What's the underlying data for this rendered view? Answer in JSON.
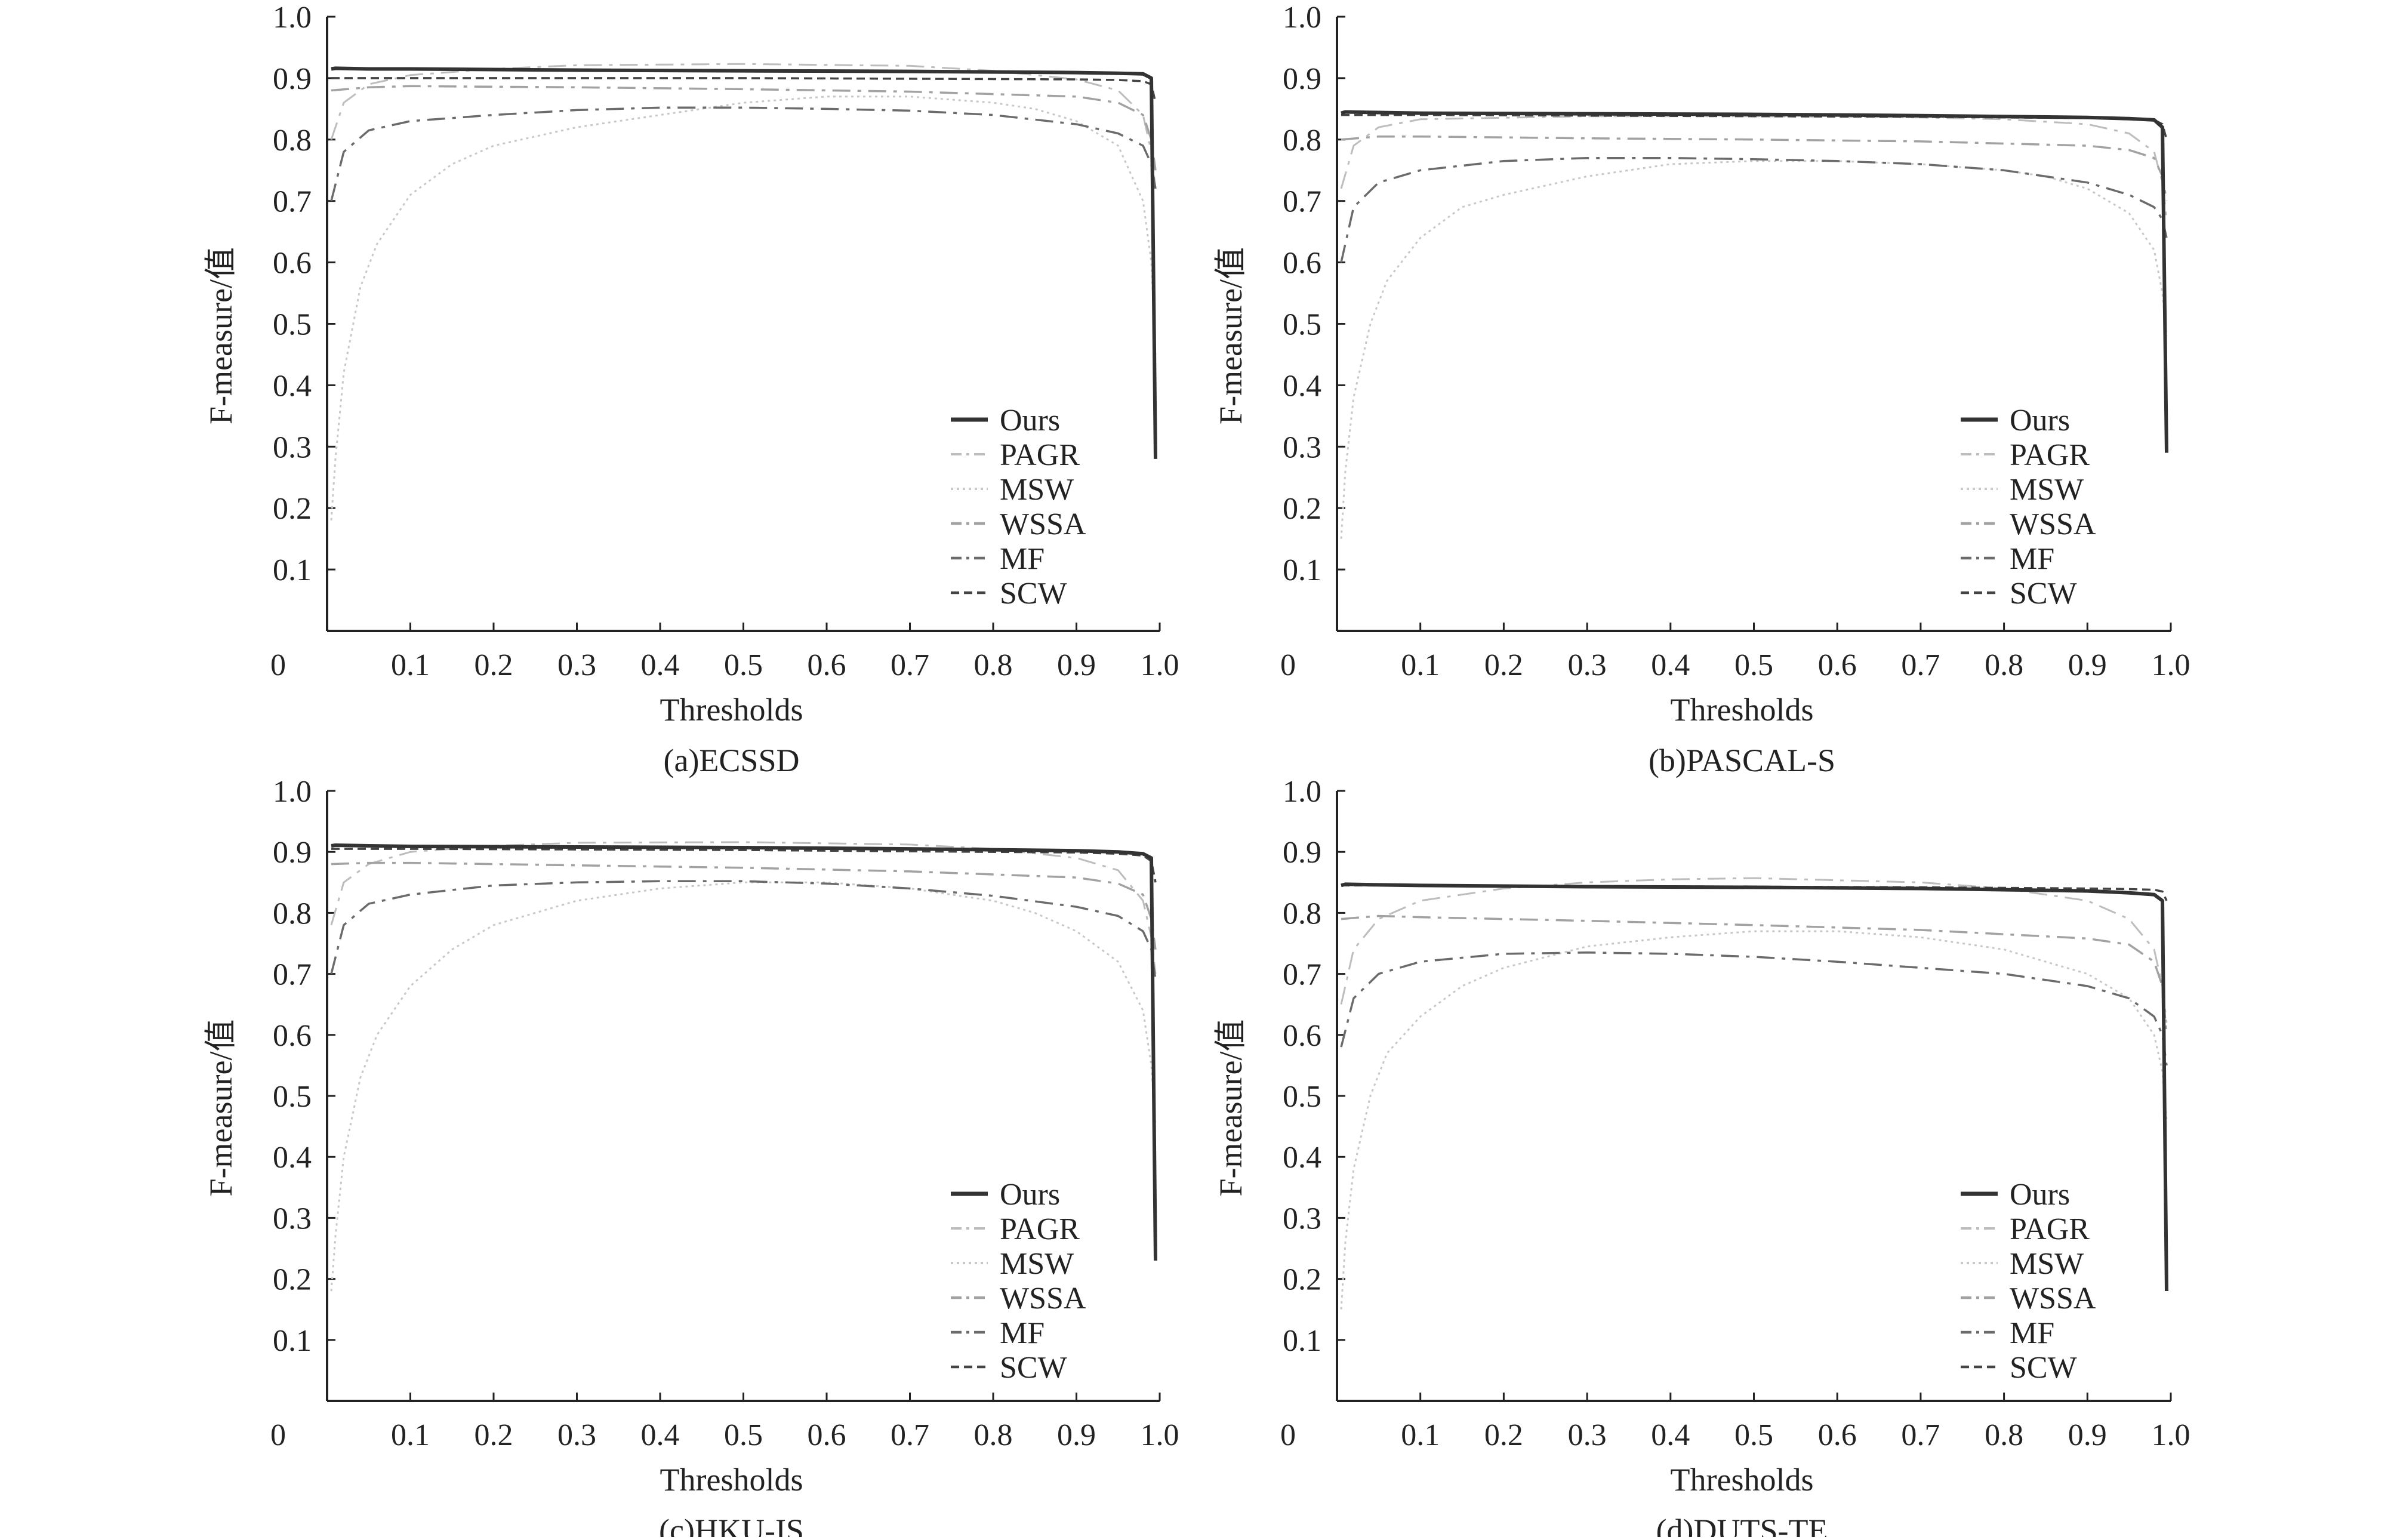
{
  "figure": {
    "ylabel": "F-measure/值",
    "xlabel": "Thresholds"
  },
  "legend_labels": [
    "Ours",
    "PAGR",
    "MSW",
    "WSSA",
    "MF",
    "SCW"
  ],
  "series_styles": {
    "Ours": {
      "color": "#333333",
      "dash": "none",
      "width": 6
    },
    "PAGR": {
      "color": "#bdbdbd",
      "dash": "30,12,6,12",
      "width": 3
    },
    "MSW": {
      "color": "#c8c8c8",
      "dash": "4,6",
      "width": 3
    },
    "WSSA": {
      "color": "#a2a2a2",
      "dash": "30,12,6,12",
      "width": 3.5
    },
    "MF": {
      "color": "#6b6b6b",
      "dash": "30,12,6,12",
      "width": 3.5
    },
    "SCW": {
      "color": "#444444",
      "dash": "14,8",
      "width": 3.5
    }
  },
  "chart_data": [
    {
      "type": "line",
      "caption": "(a)ECSSD",
      "xlabel": "Thresholds",
      "ylabel": "F-measure/值",
      "xlim": [
        0,
        1.0
      ],
      "ylim": [
        0,
        1.0
      ],
      "x_ticks": [
        "0.1",
        "0.2",
        "0.3",
        "0.4",
        "0.5",
        "0.6",
        "0.7",
        "0.8",
        "0.9",
        "1.0"
      ],
      "y_ticks": [
        "0.1",
        "0.2",
        "0.3",
        "0.4",
        "0.5",
        "0.6",
        "0.7",
        "0.8",
        "0.9",
        "1.0"
      ],
      "origin_label": "0",
      "legend": "right",
      "series": [
        {
          "name": "Ours",
          "x": [
            0.005,
            0.01,
            0.05,
            0.1,
            0.3,
            0.5,
            0.7,
            0.9,
            0.95,
            0.98,
            0.99,
            0.995
          ],
          "y": [
            0.915,
            0.916,
            0.915,
            0.915,
            0.913,
            0.912,
            0.911,
            0.909,
            0.908,
            0.907,
            0.9,
            0.28
          ]
        },
        {
          "name": "PAGR",
          "x": [
            0.005,
            0.02,
            0.05,
            0.1,
            0.2,
            0.3,
            0.5,
            0.7,
            0.8,
            0.9,
            0.95,
            0.98,
            0.99,
            0.995
          ],
          "y": [
            0.8,
            0.86,
            0.89,
            0.905,
            0.915,
            0.921,
            0.923,
            0.92,
            0.912,
            0.898,
            0.88,
            0.84,
            0.78,
            0.72
          ]
        },
        {
          "name": "MSW",
          "x": [
            0.005,
            0.01,
            0.02,
            0.04,
            0.06,
            0.1,
            0.15,
            0.2,
            0.3,
            0.4,
            0.5,
            0.6,
            0.7,
            0.8,
            0.85,
            0.9,
            0.95,
            0.98,
            0.99,
            0.995
          ],
          "y": [
            0.18,
            0.28,
            0.42,
            0.56,
            0.63,
            0.71,
            0.76,
            0.79,
            0.82,
            0.84,
            0.86,
            0.87,
            0.87,
            0.86,
            0.85,
            0.83,
            0.79,
            0.7,
            0.6,
            0.45
          ]
        },
        {
          "name": "WSSA",
          "x": [
            0.005,
            0.05,
            0.1,
            0.3,
            0.5,
            0.7,
            0.9,
            0.95,
            0.98,
            0.99,
            0.995
          ],
          "y": [
            0.88,
            0.885,
            0.887,
            0.885,
            0.882,
            0.878,
            0.87,
            0.86,
            0.84,
            0.8,
            0.75
          ]
        },
        {
          "name": "MF",
          "x": [
            0.005,
            0.02,
            0.05,
            0.1,
            0.2,
            0.3,
            0.4,
            0.5,
            0.6,
            0.7,
            0.8,
            0.9,
            0.95,
            0.98,
            0.99,
            0.995
          ],
          "y": [
            0.7,
            0.78,
            0.815,
            0.83,
            0.84,
            0.848,
            0.852,
            0.852,
            0.85,
            0.847,
            0.84,
            0.825,
            0.81,
            0.79,
            0.76,
            0.72
          ]
        },
        {
          "name": "SCW",
          "x": [
            0.005,
            0.1,
            0.3,
            0.5,
            0.7,
            0.9,
            0.95,
            0.98,
            0.99,
            0.995
          ],
          "y": [
            0.9,
            0.9,
            0.9,
            0.9,
            0.899,
            0.898,
            0.897,
            0.895,
            0.89,
            0.86
          ]
        }
      ]
    },
    {
      "type": "line",
      "caption": "(b)PASCAL-S",
      "xlabel": "Thresholds",
      "ylabel": "F-measure/值",
      "xlim": [
        0,
        1.0
      ],
      "ylim": [
        0,
        1.0
      ],
      "x_ticks": [
        "0.1",
        "0.2",
        "0.3",
        "0.4",
        "0.5",
        "0.6",
        "0.7",
        "0.8",
        "0.9",
        "1.0"
      ],
      "y_ticks": [
        "0.1",
        "0.2",
        "0.3",
        "0.4",
        "0.5",
        "0.6",
        "0.7",
        "0.8",
        "0.9",
        "1.0"
      ],
      "origin_label": "0",
      "legend": "right",
      "series": [
        {
          "name": "Ours",
          "x": [
            0.005,
            0.01,
            0.05,
            0.1,
            0.3,
            0.5,
            0.7,
            0.9,
            0.95,
            0.98,
            0.99,
            0.995
          ],
          "y": [
            0.843,
            0.845,
            0.844,
            0.843,
            0.842,
            0.841,
            0.839,
            0.836,
            0.834,
            0.832,
            0.82,
            0.29
          ]
        },
        {
          "name": "PAGR",
          "x": [
            0.005,
            0.02,
            0.05,
            0.1,
            0.3,
            0.5,
            0.7,
            0.8,
            0.9,
            0.95,
            0.98,
            0.99,
            0.995
          ],
          "y": [
            0.72,
            0.79,
            0.82,
            0.833,
            0.838,
            0.838,
            0.836,
            0.833,
            0.825,
            0.81,
            0.78,
            0.73,
            0.67
          ]
        },
        {
          "name": "MSW",
          "x": [
            0.005,
            0.01,
            0.02,
            0.04,
            0.06,
            0.1,
            0.15,
            0.2,
            0.3,
            0.4,
            0.5,
            0.6,
            0.7,
            0.8,
            0.85,
            0.9,
            0.95,
            0.98,
            0.99,
            0.995
          ],
          "y": [
            0.15,
            0.26,
            0.38,
            0.5,
            0.57,
            0.64,
            0.69,
            0.71,
            0.74,
            0.76,
            0.765,
            0.765,
            0.76,
            0.75,
            0.74,
            0.72,
            0.68,
            0.62,
            0.55,
            0.48
          ]
        },
        {
          "name": "WSSA",
          "x": [
            0.005,
            0.05,
            0.1,
            0.3,
            0.5,
            0.7,
            0.9,
            0.95,
            0.98,
            0.99,
            0.995
          ],
          "y": [
            0.8,
            0.805,
            0.805,
            0.802,
            0.8,
            0.797,
            0.79,
            0.783,
            0.77,
            0.74,
            0.7
          ]
        },
        {
          "name": "MF",
          "x": [
            0.005,
            0.02,
            0.05,
            0.1,
            0.2,
            0.3,
            0.4,
            0.5,
            0.6,
            0.7,
            0.8,
            0.9,
            0.95,
            0.98,
            0.99,
            0.995
          ],
          "y": [
            0.6,
            0.69,
            0.73,
            0.75,
            0.765,
            0.77,
            0.77,
            0.768,
            0.765,
            0.76,
            0.75,
            0.73,
            0.71,
            0.69,
            0.67,
            0.64
          ]
        },
        {
          "name": "SCW",
          "x": [
            0.005,
            0.1,
            0.3,
            0.5,
            0.7,
            0.9,
            0.95,
            0.98,
            0.99,
            0.995
          ],
          "y": [
            0.84,
            0.84,
            0.839,
            0.838,
            0.837,
            0.835,
            0.834,
            0.832,
            0.825,
            0.8
          ]
        }
      ]
    },
    {
      "type": "line",
      "caption": "(c)HKU-IS",
      "xlabel": "Thresholds",
      "ylabel": "F-measure/值",
      "xlim": [
        0,
        1.0
      ],
      "ylim": [
        0,
        1.0
      ],
      "x_ticks": [
        "0.1",
        "0.2",
        "0.3",
        "0.4",
        "0.5",
        "0.6",
        "0.7",
        "0.8",
        "0.9",
        "1.0"
      ],
      "y_ticks": [
        "0.1",
        "0.2",
        "0.3",
        "0.4",
        "0.5",
        "0.6",
        "0.7",
        "0.8",
        "0.9",
        "1.0"
      ],
      "origin_label": "0",
      "legend": "right",
      "series": [
        {
          "name": "Ours",
          "x": [
            0.005,
            0.01,
            0.05,
            0.1,
            0.3,
            0.5,
            0.7,
            0.9,
            0.95,
            0.98,
            0.99,
            0.995
          ],
          "y": [
            0.91,
            0.911,
            0.91,
            0.909,
            0.908,
            0.907,
            0.905,
            0.902,
            0.9,
            0.897,
            0.89,
            0.23
          ]
        },
        {
          "name": "PAGR",
          "x": [
            0.005,
            0.02,
            0.05,
            0.1,
            0.2,
            0.3,
            0.5,
            0.7,
            0.8,
            0.9,
            0.95,
            0.98,
            0.99,
            0.995
          ],
          "y": [
            0.78,
            0.85,
            0.88,
            0.9,
            0.91,
            0.915,
            0.916,
            0.912,
            0.905,
            0.89,
            0.87,
            0.82,
            0.76,
            0.7
          ]
        },
        {
          "name": "MSW",
          "x": [
            0.005,
            0.01,
            0.02,
            0.04,
            0.06,
            0.1,
            0.15,
            0.2,
            0.3,
            0.4,
            0.5,
            0.6,
            0.7,
            0.8,
            0.85,
            0.9,
            0.95,
            0.98,
            0.99,
            0.995
          ],
          "y": [
            0.18,
            0.27,
            0.4,
            0.53,
            0.6,
            0.68,
            0.74,
            0.78,
            0.82,
            0.84,
            0.85,
            0.85,
            0.84,
            0.82,
            0.8,
            0.77,
            0.72,
            0.64,
            0.55,
            0.45
          ]
        },
        {
          "name": "WSSA",
          "x": [
            0.005,
            0.05,
            0.1,
            0.3,
            0.5,
            0.7,
            0.9,
            0.95,
            0.98,
            0.99,
            0.995
          ],
          "y": [
            0.88,
            0.882,
            0.882,
            0.878,
            0.874,
            0.868,
            0.858,
            0.848,
            0.83,
            0.79,
            0.74
          ]
        },
        {
          "name": "MF",
          "x": [
            0.005,
            0.02,
            0.05,
            0.1,
            0.2,
            0.3,
            0.4,
            0.5,
            0.6,
            0.7,
            0.8,
            0.9,
            0.95,
            0.98,
            0.99,
            0.995
          ],
          "y": [
            0.7,
            0.78,
            0.815,
            0.83,
            0.845,
            0.85,
            0.852,
            0.852,
            0.848,
            0.84,
            0.828,
            0.81,
            0.795,
            0.77,
            0.74,
            0.69
          ]
        },
        {
          "name": "SCW",
          "x": [
            0.005,
            0.1,
            0.3,
            0.5,
            0.7,
            0.9,
            0.95,
            0.98,
            0.99,
            0.995
          ],
          "y": [
            0.905,
            0.905,
            0.904,
            0.903,
            0.901,
            0.899,
            0.897,
            0.894,
            0.885,
            0.85
          ]
        }
      ]
    },
    {
      "type": "line",
      "caption": "(d)DUTS-TE",
      "xlabel": "Thresholds",
      "ylabel": "F-measure/值",
      "xlim": [
        0,
        1.0
      ],
      "ylim": [
        0,
        1.0
      ],
      "x_ticks": [
        "0.1",
        "0.2",
        "0.3",
        "0.4",
        "0.5",
        "0.6",
        "0.7",
        "0.8",
        "0.9",
        "1.0"
      ],
      "y_ticks": [
        "0.1",
        "0.2",
        "0.3",
        "0.4",
        "0.5",
        "0.6",
        "0.7",
        "0.8",
        "0.9",
        "1.0"
      ],
      "origin_label": "0",
      "legend": "right",
      "series": [
        {
          "name": "Ours",
          "x": [
            0.005,
            0.01,
            0.05,
            0.1,
            0.3,
            0.5,
            0.7,
            0.9,
            0.95,
            0.98,
            0.99,
            0.995
          ],
          "y": [
            0.845,
            0.847,
            0.846,
            0.845,
            0.843,
            0.842,
            0.84,
            0.836,
            0.833,
            0.83,
            0.82,
            0.18
          ]
        },
        {
          "name": "PAGR",
          "x": [
            0.005,
            0.02,
            0.05,
            0.1,
            0.2,
            0.3,
            0.4,
            0.5,
            0.7,
            0.8,
            0.9,
            0.95,
            0.98,
            0.99,
            0.995
          ],
          "y": [
            0.65,
            0.74,
            0.79,
            0.82,
            0.84,
            0.85,
            0.855,
            0.857,
            0.85,
            0.84,
            0.82,
            0.79,
            0.74,
            0.68,
            0.62
          ]
        },
        {
          "name": "MSW",
          "x": [
            0.005,
            0.01,
            0.02,
            0.04,
            0.06,
            0.1,
            0.15,
            0.2,
            0.3,
            0.4,
            0.5,
            0.6,
            0.7,
            0.8,
            0.85,
            0.9,
            0.95,
            0.98,
            0.99,
            0.995
          ],
          "y": [
            0.15,
            0.26,
            0.38,
            0.5,
            0.57,
            0.63,
            0.68,
            0.71,
            0.745,
            0.76,
            0.77,
            0.77,
            0.76,
            0.74,
            0.72,
            0.7,
            0.66,
            0.6,
            0.54,
            0.46
          ]
        },
        {
          "name": "WSSA",
          "x": [
            0.005,
            0.05,
            0.1,
            0.3,
            0.5,
            0.7,
            0.9,
            0.95,
            0.98,
            0.99,
            0.995
          ],
          "y": [
            0.79,
            0.795,
            0.793,
            0.787,
            0.78,
            0.772,
            0.758,
            0.748,
            0.72,
            0.68,
            0.6
          ]
        },
        {
          "name": "MF",
          "x": [
            0.005,
            0.02,
            0.05,
            0.1,
            0.2,
            0.3,
            0.4,
            0.5,
            0.6,
            0.7,
            0.8,
            0.9,
            0.95,
            0.98,
            0.99,
            0.995
          ],
          "y": [
            0.58,
            0.66,
            0.7,
            0.72,
            0.733,
            0.735,
            0.733,
            0.728,
            0.72,
            0.71,
            0.7,
            0.68,
            0.66,
            0.63,
            0.6,
            0.55
          ]
        },
        {
          "name": "SCW",
          "x": [
            0.005,
            0.1,
            0.3,
            0.5,
            0.7,
            0.9,
            0.95,
            0.98,
            0.99,
            0.995
          ],
          "y": [
            0.845,
            0.845,
            0.844,
            0.843,
            0.842,
            0.84,
            0.839,
            0.838,
            0.835,
            0.82
          ]
        }
      ]
    }
  ]
}
